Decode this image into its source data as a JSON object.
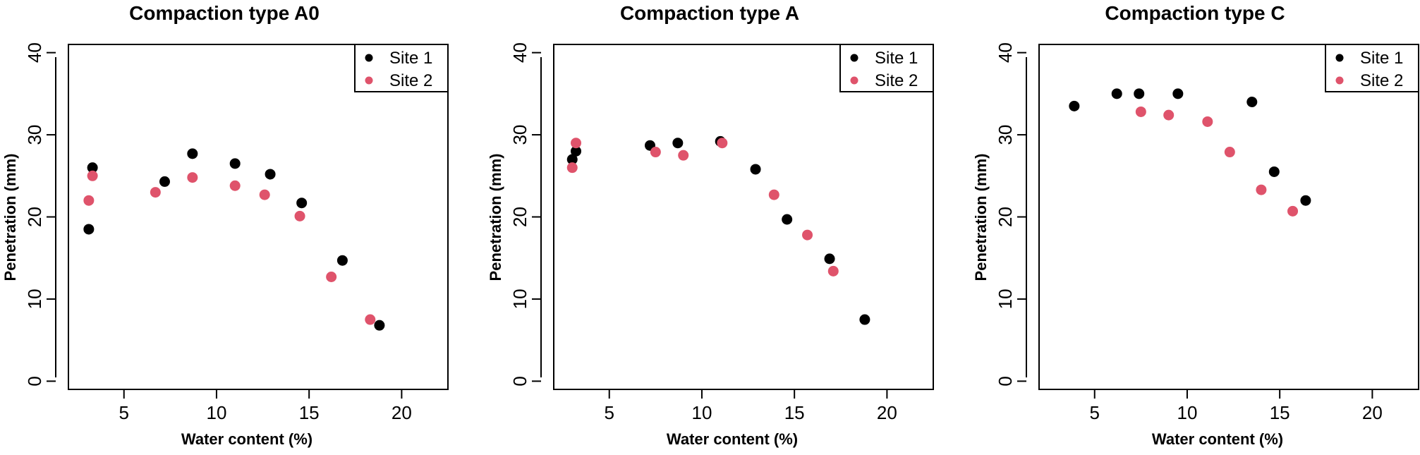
{
  "chart_data": [
    {
      "type": "scatter",
      "title": "Compaction type A0",
      "xlabel": "Water content (%)",
      "ylabel": "Penetration (mm)",
      "xlim": [
        2,
        22.5
      ],
      "ylim": [
        -1,
        41
      ],
      "xticks": [
        5,
        10,
        15,
        20
      ],
      "yticks": [
        0,
        10,
        20,
        30,
        40
      ],
      "grid": false,
      "legend_position": "top-right",
      "series": [
        {
          "name": "Site 1",
          "color": "#000000",
          "x": [
            3.1,
            3.3,
            7.2,
            8.7,
            11.0,
            12.9,
            14.6,
            16.8,
            18.8
          ],
          "y": [
            18.5,
            26.0,
            24.3,
            27.7,
            26.5,
            25.2,
            21.7,
            14.7,
            6.8
          ]
        },
        {
          "name": "Site 2",
          "color": "#DF536B",
          "x": [
            3.1,
            3.3,
            6.7,
            8.7,
            11.0,
            12.6,
            14.5,
            16.2,
            18.3
          ],
          "y": [
            22.0,
            25.0,
            23.0,
            24.8,
            23.8,
            22.7,
            20.1,
            12.7,
            7.5
          ]
        }
      ]
    },
    {
      "type": "scatter",
      "title": "Compaction type A",
      "xlabel": "Water content (%)",
      "ylabel": "Penetration (mm)",
      "xlim": [
        2,
        22.5
      ],
      "ylim": [
        -1,
        41
      ],
      "xticks": [
        5,
        10,
        15,
        20
      ],
      "yticks": [
        0,
        10,
        20,
        30,
        40
      ],
      "grid": false,
      "legend_position": "top-right",
      "series": [
        {
          "name": "Site 1",
          "color": "#000000",
          "x": [
            3.0,
            3.2,
            7.2,
            8.7,
            11.0,
            12.9,
            14.6,
            16.9,
            18.8
          ],
          "y": [
            27.0,
            28.0,
            28.7,
            29.0,
            29.2,
            25.8,
            19.7,
            14.9,
            7.5
          ]
        },
        {
          "name": "Site 2",
          "color": "#DF536B",
          "x": [
            3.0,
            3.2,
            7.5,
            9.0,
            11.1,
            13.9,
            15.7,
            17.1
          ],
          "y": [
            26.0,
            29.0,
            27.9,
            27.5,
            29.0,
            22.7,
            17.8,
            13.4
          ]
        }
      ]
    },
    {
      "type": "scatter",
      "title": "Compaction type C",
      "xlabel": "Water content (%)",
      "ylabel": "Penetration (mm)",
      "xlim": [
        2,
        22.5
      ],
      "ylim": [
        -1,
        41
      ],
      "xticks": [
        5,
        10,
        15,
        20
      ],
      "yticks": [
        0,
        10,
        20,
        30,
        40
      ],
      "grid": false,
      "legend_position": "top-right",
      "series": [
        {
          "name": "Site 1",
          "color": "#000000",
          "x": [
            3.9,
            6.2,
            7.4,
            9.5,
            13.5,
            14.7,
            16.4
          ],
          "y": [
            33.5,
            35.0,
            35.0,
            35.0,
            34.0,
            25.5,
            22.0
          ]
        },
        {
          "name": "Site 2",
          "color": "#DF536B",
          "x": [
            7.5,
            9.0,
            11.1,
            12.3,
            14.0,
            15.7
          ],
          "y": [
            32.8,
            32.4,
            31.6,
            27.9,
            23.3,
            20.7
          ]
        }
      ]
    }
  ]
}
